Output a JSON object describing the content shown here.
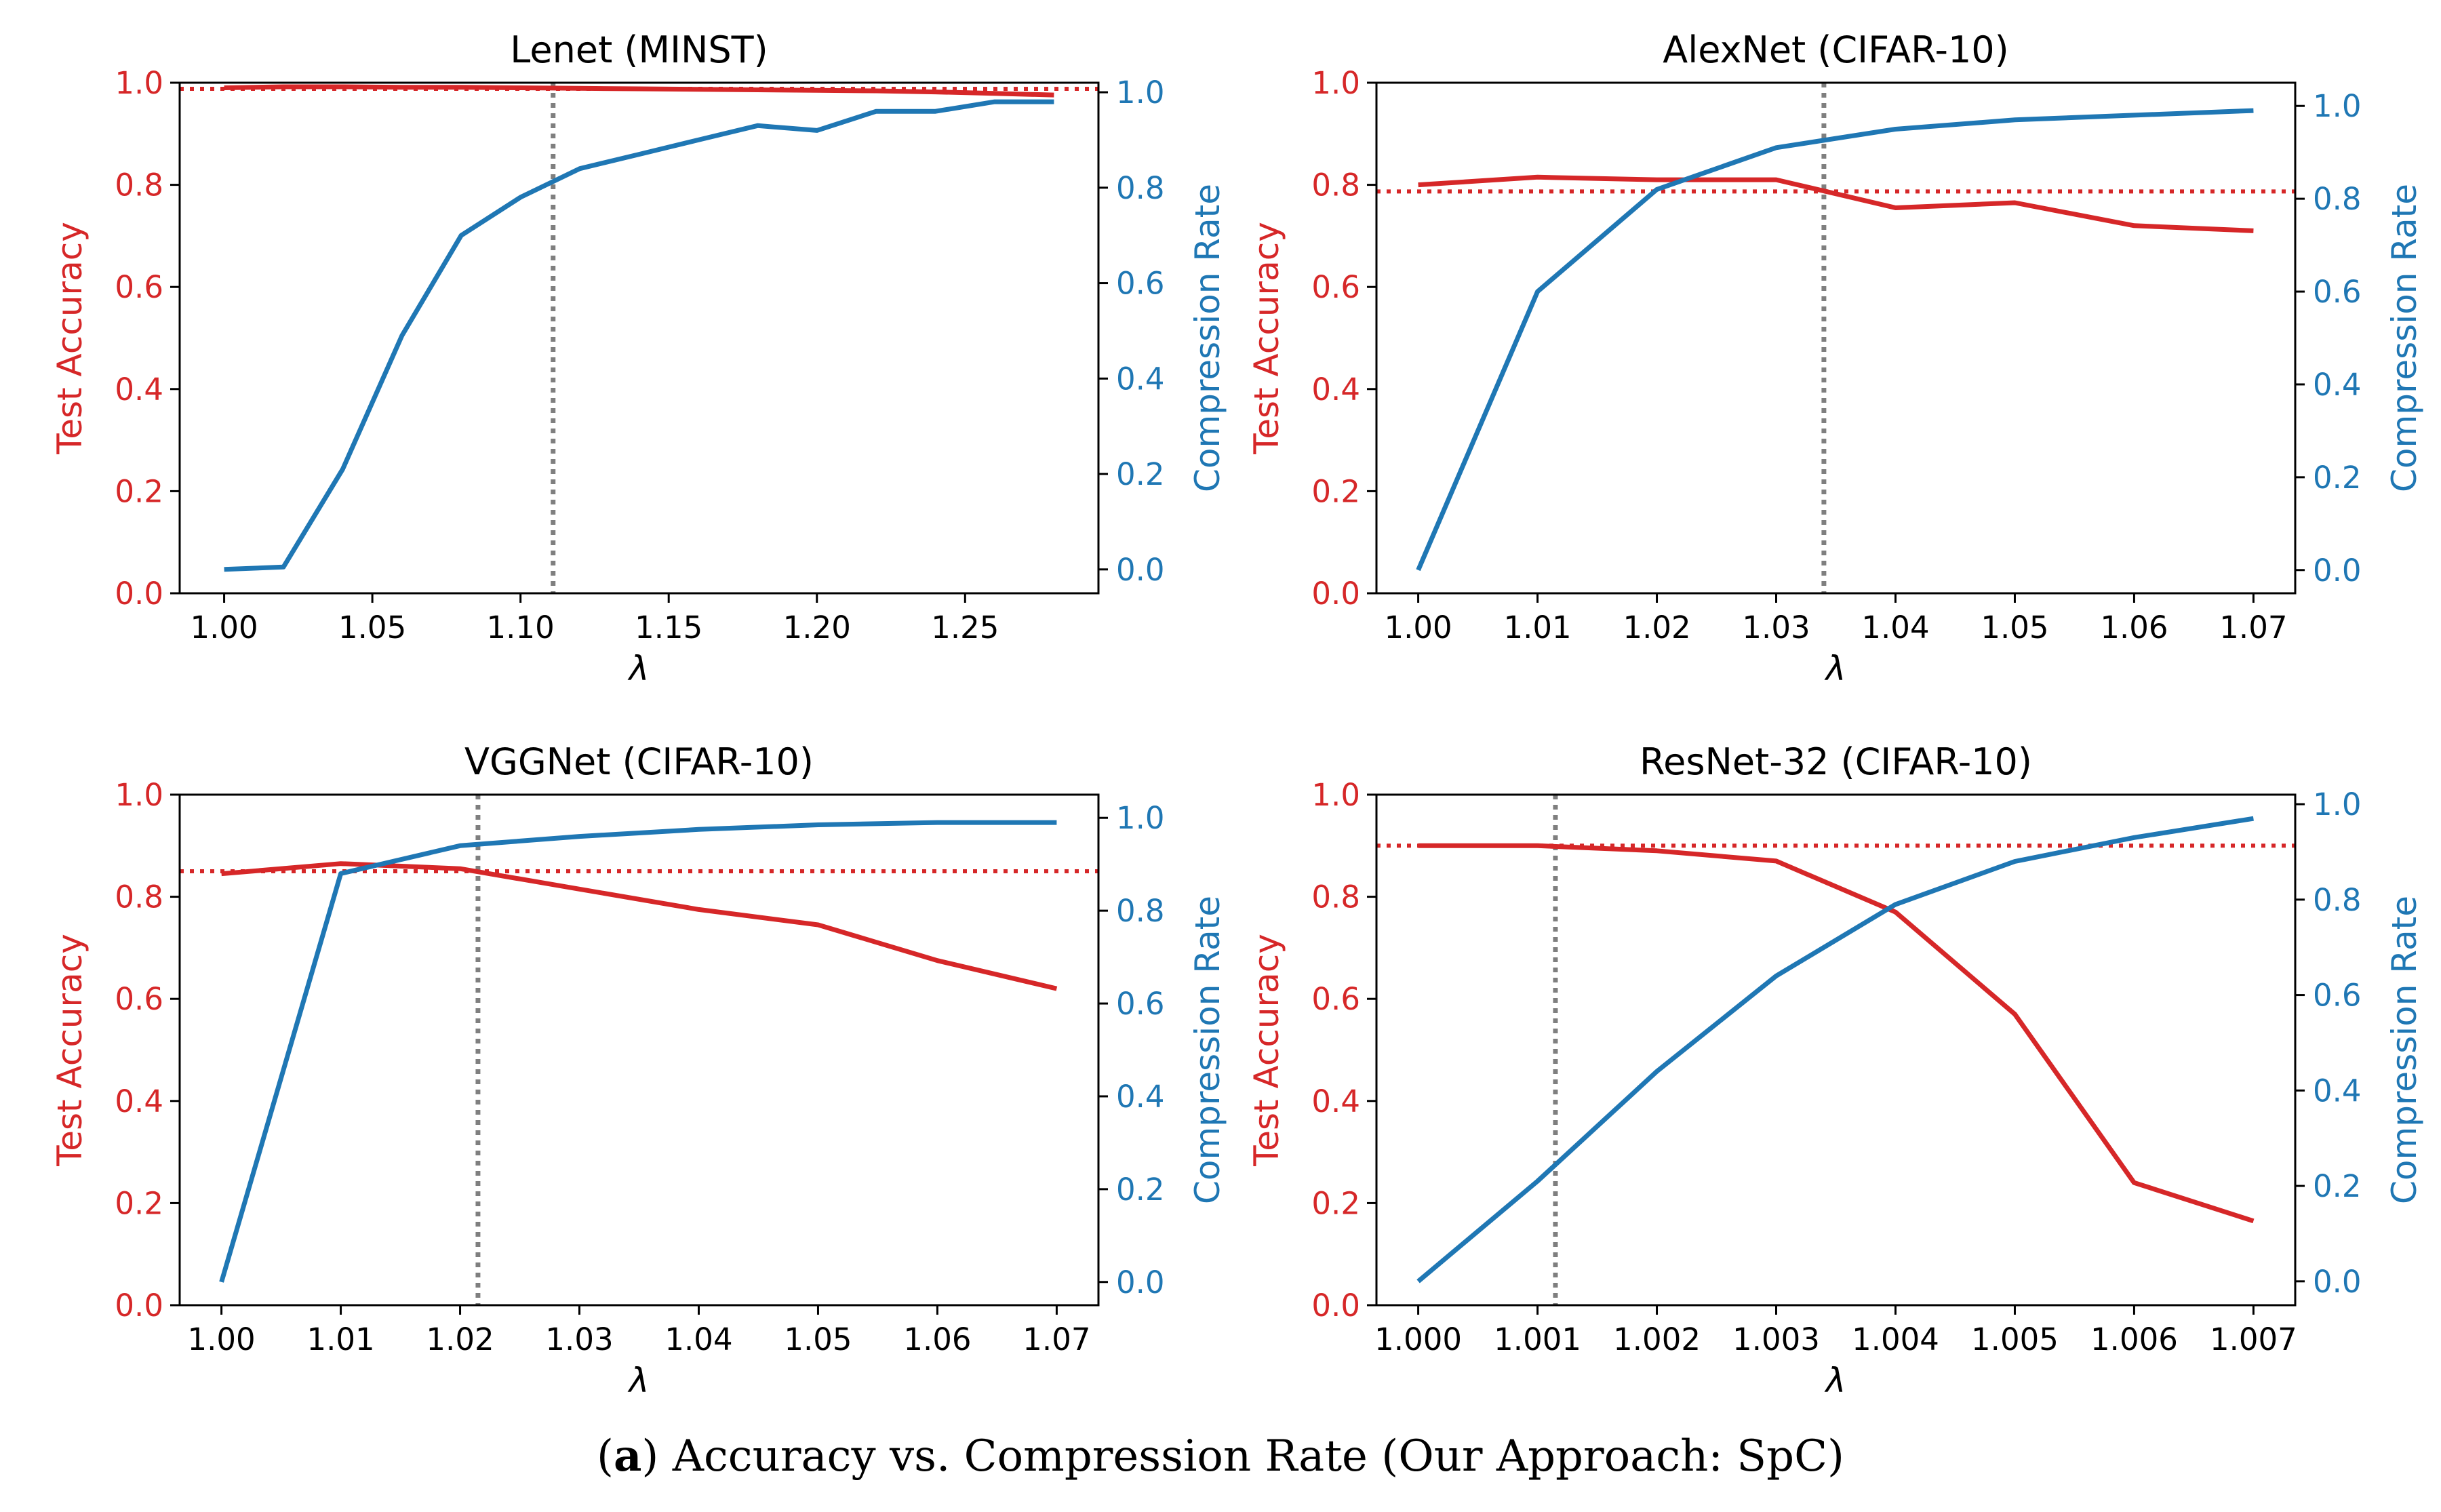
{
  "colors": {
    "accuracy": "#d62728",
    "compression": "#1f77b4",
    "vline": "#7f7f7f"
  },
  "caption": {
    "letter": "a",
    "text": " Accuracy vs. Compression Rate (Our Approach: SpC)"
  },
  "chart_data": [
    {
      "type": "line",
      "title": "Lenet (MINST)",
      "xlabel": "λ",
      "ylabel_left": "Test Accuracy",
      "ylabel_right": "Compression Rate",
      "xlim": [
        0.985,
        1.295
      ],
      "ylim_left": [
        0.0,
        1.0
      ],
      "ylim_right": [
        -0.05,
        1.02
      ],
      "x_ticks": [
        1.0,
        1.05,
        1.1,
        1.15,
        1.2,
        1.25
      ],
      "x_tick_labels": [
        "1.00",
        "1.05",
        "1.10",
        "1.15",
        "1.20",
        "1.25"
      ],
      "y_ticks_left": [
        0.0,
        0.2,
        0.4,
        0.6,
        0.8,
        1.0
      ],
      "y_tick_labels_left": [
        "0.0",
        "0.2",
        "0.4",
        "0.6",
        "0.8",
        "1.0"
      ],
      "y_ticks_right": [
        0.0,
        0.2,
        0.4,
        0.6,
        0.8,
        1.0
      ],
      "y_tick_labels_right": [
        "0.0",
        "0.2",
        "0.4",
        "0.6",
        "0.8",
        "1.0"
      ],
      "accuracy_threshold": 0.988,
      "vline_x": 1.111,
      "series": [
        {
          "axis": "left",
          "x": [
            1.0,
            1.02,
            1.04,
            1.06,
            1.08,
            1.1,
            1.12,
            1.14,
            1.16,
            1.18,
            1.2,
            1.22,
            1.24,
            1.26,
            1.28
          ],
          "values": [
            0.99,
            0.992,
            0.992,
            0.991,
            0.991,
            0.99,
            0.989,
            0.988,
            0.987,
            0.986,
            0.985,
            0.984,
            0.982,
            0.979,
            0.976
          ]
        },
        {
          "axis": "right",
          "x": [
            1.0,
            1.02,
            1.04,
            1.06,
            1.08,
            1.1,
            1.12,
            1.14,
            1.16,
            1.18,
            1.2,
            1.22,
            1.24,
            1.26,
            1.28
          ],
          "values": [
            0.0,
            0.005,
            0.21,
            0.49,
            0.7,
            0.78,
            0.84,
            0.87,
            0.9,
            0.93,
            0.92,
            0.96,
            0.96,
            0.98,
            0.98
          ]
        }
      ]
    },
    {
      "type": "line",
      "title": "AlexNet (CIFAR-10)",
      "xlabel": "λ",
      "ylabel_left": "Test Accuracy",
      "ylabel_right": "Compression Rate",
      "xlim": [
        0.9965,
        1.0735
      ],
      "ylim_left": [
        0.0,
        1.0
      ],
      "ylim_right": [
        -0.05,
        1.05
      ],
      "x_ticks": [
        1.0,
        1.01,
        1.02,
        1.03,
        1.04,
        1.05,
        1.06,
        1.07
      ],
      "x_tick_labels": [
        "1.00",
        "1.01",
        "1.02",
        "1.03",
        "1.04",
        "1.05",
        "1.06",
        "1.07"
      ],
      "y_ticks_left": [
        0.0,
        0.2,
        0.4,
        0.6,
        0.8,
        1.0
      ],
      "y_tick_labels_left": [
        "0.0",
        "0.2",
        "0.4",
        "0.6",
        "0.8",
        "1.0"
      ],
      "y_ticks_right": [
        0.0,
        0.2,
        0.4,
        0.6,
        0.8,
        1.0
      ],
      "y_tick_labels_right": [
        "0.0",
        "0.2",
        "0.4",
        "0.6",
        "0.8",
        "1.0"
      ],
      "accuracy_threshold": 0.787,
      "vline_x": 1.034,
      "series": [
        {
          "axis": "left",
          "x": [
            1.0,
            1.01,
            1.02,
            1.03,
            1.04,
            1.05,
            1.06,
            1.07
          ],
          "values": [
            0.8,
            0.815,
            0.81,
            0.81,
            0.755,
            0.765,
            0.72,
            0.71
          ]
        },
        {
          "axis": "right",
          "x": [
            1.0,
            1.01,
            1.02,
            1.03,
            1.04,
            1.05,
            1.06,
            1.07
          ],
          "values": [
            0.0,
            0.6,
            0.82,
            0.91,
            0.95,
            0.97,
            0.98,
            0.99
          ]
        }
      ]
    },
    {
      "type": "line",
      "title": "VGGNet (CIFAR-10)",
      "xlabel": "λ",
      "ylabel_left": "Test Accuracy",
      "ylabel_right": "Compression Rate",
      "xlim": [
        0.9965,
        1.0735
      ],
      "ylim_left": [
        0.0,
        1.0
      ],
      "ylim_right": [
        -0.05,
        1.05
      ],
      "x_ticks": [
        1.0,
        1.01,
        1.02,
        1.03,
        1.04,
        1.05,
        1.06,
        1.07
      ],
      "x_tick_labels": [
        "1.00",
        "1.01",
        "1.02",
        "1.03",
        "1.04",
        "1.05",
        "1.06",
        "1.07"
      ],
      "y_ticks_left": [
        0.0,
        0.2,
        0.4,
        0.6,
        0.8,
        1.0
      ],
      "y_tick_labels_left": [
        "0.0",
        "0.2",
        "0.4",
        "0.6",
        "0.8",
        "1.0"
      ],
      "y_ticks_right": [
        0.0,
        0.2,
        0.4,
        0.6,
        0.8,
        1.0
      ],
      "y_tick_labels_right": [
        "0.0",
        "0.2",
        "0.4",
        "0.6",
        "0.8",
        "1.0"
      ],
      "accuracy_threshold": 0.85,
      "vline_x": 1.0215,
      "series": [
        {
          "axis": "left",
          "x": [
            1.0,
            1.01,
            1.02,
            1.03,
            1.04,
            1.05,
            1.06,
            1.07
          ],
          "values": [
            0.845,
            0.865,
            0.855,
            0.815,
            0.775,
            0.745,
            0.675,
            0.62
          ]
        },
        {
          "axis": "right",
          "x": [
            1.0,
            1.01,
            1.02,
            1.03,
            1.04,
            1.05,
            1.06,
            1.07
          ],
          "values": [
            0.0,
            0.88,
            0.94,
            0.96,
            0.975,
            0.985,
            0.99,
            0.99
          ]
        }
      ]
    },
    {
      "type": "line",
      "title": "ResNet-32 (CIFAR-10)",
      "xlabel": "λ",
      "ylabel_left": "Test Accuracy",
      "ylabel_right": "Compression Rate",
      "xlim": [
        0.99965,
        1.00735
      ],
      "ylim_left": [
        0.0,
        1.0
      ],
      "ylim_right": [
        -0.05,
        1.02
      ],
      "x_ticks": [
        1.0,
        1.001,
        1.002,
        1.003,
        1.004,
        1.005,
        1.006,
        1.007
      ],
      "x_tick_labels": [
        "1.000",
        "1.001",
        "1.002",
        "1.003",
        "1.004",
        "1.005",
        "1.006",
        "1.007"
      ],
      "y_ticks_left": [
        0.0,
        0.2,
        0.4,
        0.6,
        0.8,
        1.0
      ],
      "y_tick_labels_left": [
        "0.0",
        "0.2",
        "0.4",
        "0.6",
        "0.8",
        "1.0"
      ],
      "y_ticks_right": [
        0.0,
        0.2,
        0.4,
        0.6,
        0.8,
        1.0
      ],
      "y_tick_labels_right": [
        "0.0",
        "0.2",
        "0.4",
        "0.6",
        "0.8",
        "1.0"
      ],
      "accuracy_threshold": 0.9,
      "vline_x": 1.00115,
      "series": [
        {
          "axis": "left",
          "x": [
            1.0,
            1.001,
            1.002,
            1.003,
            1.004,
            1.005,
            1.006,
            1.007
          ],
          "values": [
            0.9,
            0.9,
            0.89,
            0.87,
            0.77,
            0.57,
            0.24,
            0.165
          ]
        },
        {
          "axis": "right",
          "x": [
            1.0,
            1.001,
            1.002,
            1.003,
            1.004,
            1.005,
            1.006,
            1.007
          ],
          "values": [
            0.0,
            0.21,
            0.44,
            0.64,
            0.79,
            0.88,
            0.93,
            0.97
          ]
        }
      ]
    }
  ]
}
